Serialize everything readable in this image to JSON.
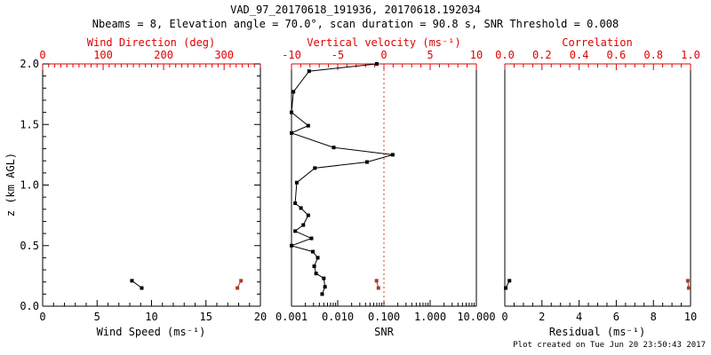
{
  "chart_data": {
    "type": "line",
    "title": "VAD_97_20170618_191936, 20170618.192034",
    "subtitle": "Nbeams = 8, Elevation angle = 70.0°, scan duration = 90.8 s, SNR Threshold = 0.008",
    "footer": "Plot created on Tue Jun 20 23:50:43 2017",
    "colors": {
      "axis_red": "#e00000",
      "data_red": "#a93b2a",
      "ref_red": "#c8402e",
      "black": "#000000"
    },
    "y_axis": {
      "label": "z (km AGL)",
      "min": 0,
      "max": 2,
      "major_values": [
        0,
        0.5,
        1.0,
        1.5,
        2.0
      ],
      "major_labels": [
        "0.0",
        "0.5",
        "1.0",
        "1.5",
        "2.0"
      ],
      "minor_step": 0.1
    },
    "panels": [
      {
        "id": "wind",
        "y_ticks": true,
        "y_labels": true,
        "bottom_axis": {
          "label": "Wind Speed (ms⁻¹)",
          "scale": "linear",
          "min": 0,
          "max": 20,
          "major_values": [
            0,
            5,
            10,
            15,
            20
          ],
          "major_labels": [
            "0",
            "5",
            "10",
            "15",
            "20"
          ],
          "minor_step": 1
        },
        "top_axis": {
          "label": "Wind Direction (deg)",
          "scale": "linear",
          "min": 0,
          "max": 360,
          "major_values": [
            0,
            100,
            200,
            300
          ],
          "major_labels": [
            "0",
            "100",
            "200",
            "300"
          ],
          "minor_step": 10
        },
        "series": [
          {
            "name": "wind-speed",
            "axis": "bottom",
            "color": "black",
            "marker": "square",
            "points": [
              [
                8.2,
                0.21
              ],
              [
                9.1,
                0.15
              ]
            ]
          },
          {
            "name": "wind-direction",
            "axis": "top",
            "color": "data_red",
            "marker": "square",
            "points": [
              [
                328,
                0.21
              ],
              [
                322,
                0.15
              ]
            ]
          }
        ]
      },
      {
        "id": "snr",
        "y_ticks": false,
        "y_labels": false,
        "bottom_axis": {
          "label": "SNR",
          "scale": "log",
          "min": 0.001,
          "max": 10,
          "major_values": [
            0.001,
            0.01,
            0.1,
            1,
            10
          ],
          "major_labels": [
            "0.001",
            "0.010",
            "0.100",
            "1.000",
            "10.000"
          ]
        },
        "top_axis": {
          "label": "Vertical velocity (ms⁻¹)",
          "scale": "linear",
          "min": -10,
          "max": 10,
          "major_values": [
            -10,
            -5,
            0,
            5,
            10
          ],
          "major_labels": [
            "-10",
            "-5",
            "0",
            "5",
            "10"
          ],
          "minor_step": 1
        },
        "ref_lines": [
          {
            "name": "zero-velocity-line",
            "axis": "top",
            "value": 0,
            "color": "ref_red",
            "style": "dotted"
          }
        ],
        "series": [
          {
            "name": "snr-profile",
            "axis": "bottom",
            "color": "black",
            "marker": "square",
            "points": [
              [
                0.07,
                2.0
              ],
              [
                0.0024,
                1.94
              ],
              [
                0.0011,
                1.77
              ],
              [
                0.001,
                1.6
              ],
              [
                0.0023,
                1.49
              ],
              [
                0.001,
                1.43
              ],
              [
                0.0082,
                1.31
              ],
              [
                0.155,
                1.25
              ],
              [
                0.043,
                1.19
              ],
              [
                0.0032,
                1.14
              ],
              [
                0.0013,
                1.02
              ],
              [
                0.0012,
                0.85
              ],
              [
                0.0016,
                0.81
              ],
              [
                0.0023,
                0.75
              ],
              [
                0.0018,
                0.67
              ],
              [
                0.0012,
                0.62
              ],
              [
                0.0027,
                0.56
              ],
              [
                0.001,
                0.5
              ],
              [
                0.0029,
                0.45
              ],
              [
                0.0037,
                0.4
              ],
              [
                0.0031,
                0.33
              ],
              [
                0.0034,
                0.27
              ],
              [
                0.005,
                0.23
              ],
              [
                0.0053,
                0.16
              ],
              [
                0.0046,
                0.1
              ]
            ]
          },
          {
            "name": "vertical-velocity",
            "axis": "top",
            "color": "data_red",
            "marker": "square",
            "points": [
              [
                -0.8,
                0.21
              ],
              [
                -0.6,
                0.15
              ]
            ]
          }
        ]
      },
      {
        "id": "residual",
        "y_ticks": false,
        "y_labels": false,
        "bottom_axis": {
          "label": "Residual (ms⁻¹)",
          "scale": "linear",
          "min": 0,
          "max": 10,
          "major_values": [
            0,
            2,
            4,
            6,
            8,
            10
          ],
          "major_labels": [
            "0",
            "2",
            "4",
            "6",
            "8",
            "10"
          ],
          "minor_step": 0.5
        },
        "top_axis": {
          "label": "Correlation",
          "scale": "linear",
          "min": 0,
          "max": 1,
          "major_values": [
            0,
            0.2,
            0.4,
            0.6,
            0.8,
            1.0
          ],
          "major_labels": [
            "0.0",
            "0.2",
            "0.4",
            "0.6",
            "0.8",
            "1.0"
          ],
          "minor_step": 0.05
        },
        "series": [
          {
            "name": "residual",
            "axis": "bottom",
            "color": "black",
            "marker": "square",
            "points": [
              [
                0.25,
                0.21
              ],
              [
                0.05,
                0.15
              ]
            ]
          },
          {
            "name": "correlation",
            "axis": "top",
            "color": "data_red",
            "marker": "square",
            "points": [
              [
                0.985,
                0.21
              ],
              [
                0.99,
                0.15
              ]
            ]
          }
        ]
      }
    ]
  }
}
